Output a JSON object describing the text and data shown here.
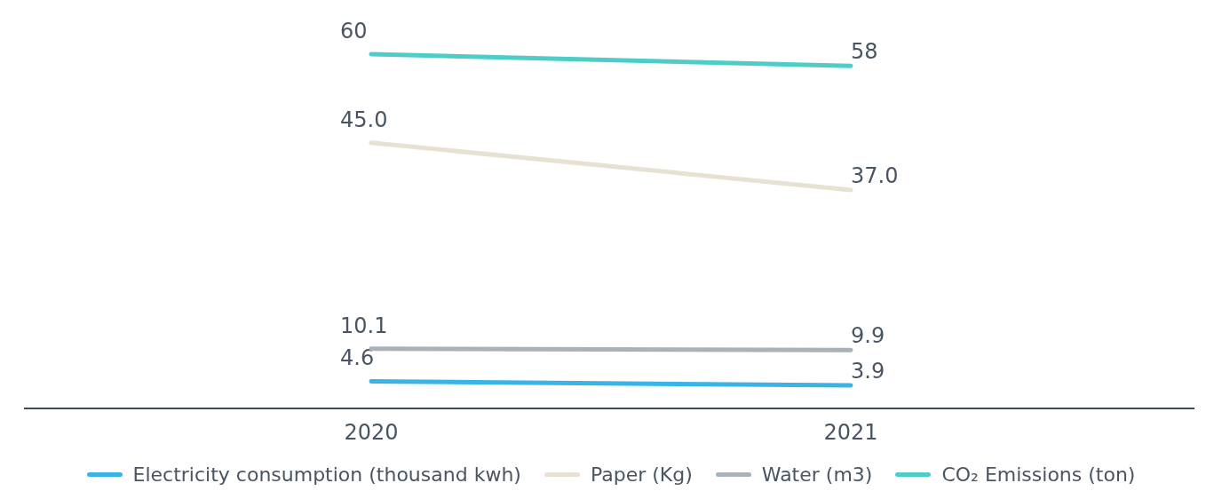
{
  "chart_data": {
    "type": "line",
    "categories": [
      "2020",
      "2021"
    ],
    "series": [
      {
        "name": "Electricity consumption (thousand kwh)",
        "color": "#3ab4e6",
        "values": [
          4.6,
          3.9
        ]
      },
      {
        "name": "Paper (Kg)",
        "color": "#e6e1d3",
        "values": [
          45.0,
          37.0
        ],
        "value_labels": [
          "45.0",
          "37.0"
        ]
      },
      {
        "name": "Water (m3)",
        "color": "#a9b1ba",
        "values": [
          10.1,
          9.9
        ]
      },
      {
        "name": "CO₂ Emissions (ton)",
        "color": "#4ecdc8",
        "values": [
          60,
          58
        ]
      }
    ],
    "data_labels": true,
    "tick_labels": "x",
    "legend": "bottom",
    "marker": "none",
    "line_style": "solid"
  }
}
